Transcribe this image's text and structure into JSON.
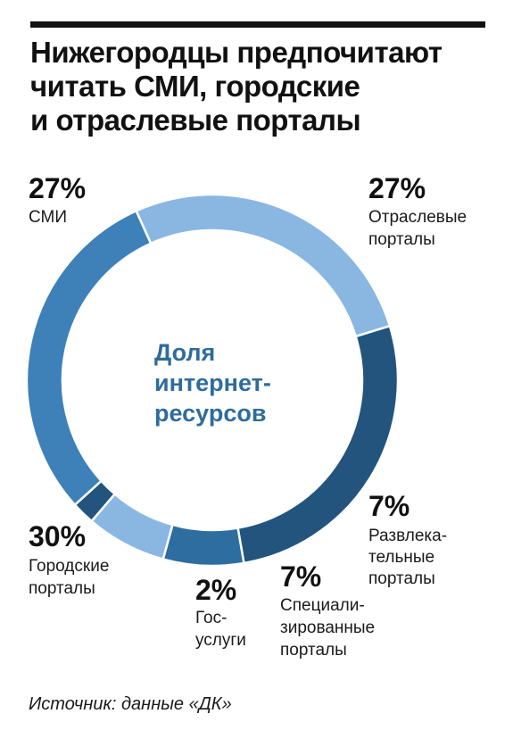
{
  "title_lines": [
    "Нижегородцы предпочитают",
    "читать СМИ, городские",
    "и отраслевые порталы"
  ],
  "source": "Источник: данные «ДК»",
  "center_label_lines": [
    "Доля",
    "интернет-",
    "ресурсов"
  ],
  "center_color": "#2f6c9c",
  "chart_data": {
    "type": "pie",
    "donut": true,
    "unit": "%",
    "slices": [
      {
        "key": "industry",
        "label_lines": [
          "Отраслевые",
          "порталы"
        ],
        "value": 27,
        "value_label": "27%",
        "color": "#22547e"
      },
      {
        "key": "entertainment",
        "label_lines": [
          "Развлека-",
          "тельные",
          "порталы"
        ],
        "value": 7,
        "value_label": "7%",
        "color": "#2e6d9f"
      },
      {
        "key": "specialized",
        "label_lines": [
          "Специали-",
          "зированные",
          "порталы"
        ],
        "value": 7,
        "value_label": "7%",
        "color": "#8ab7e2"
      },
      {
        "key": "gosuslugi",
        "label_lines": [
          "Гос-",
          "услуги"
        ],
        "value": 2,
        "value_label": "2%",
        "color": "#22547e"
      },
      {
        "key": "city",
        "label_lines": [
          "Городские",
          "порталы"
        ],
        "value": 30,
        "value_label": "30%",
        "color": "#3e80b8"
      },
      {
        "key": "media",
        "label_lines": [
          "СМИ"
        ],
        "value": 27,
        "value_label": "27%",
        "color": "#8ab7e2"
      }
    ]
  }
}
